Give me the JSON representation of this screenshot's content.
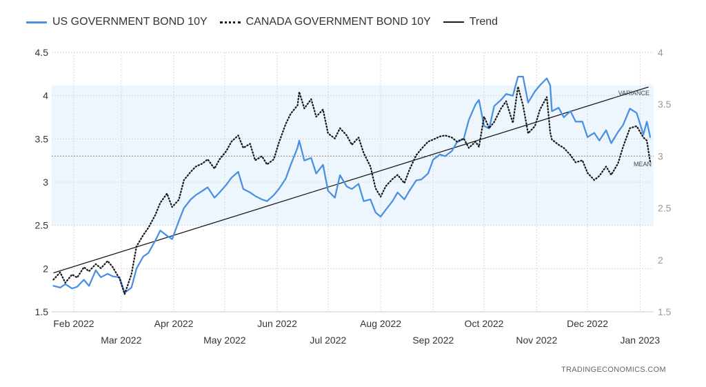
{
  "legend": {
    "items": [
      {
        "label": "US GOVERNMENT BOND 10Y",
        "color": "#4a90e2",
        "style": "solid"
      },
      {
        "label": "CANADA GOVERNMENT BOND 10Y",
        "color": "#1a1a1a",
        "style": "dotted"
      },
      {
        "label": "Trend",
        "color": "#1a1a1a",
        "style": "solid"
      }
    ]
  },
  "attribution": "TRADINGECONOMICS.COM",
  "colors": {
    "us": "#4a90e2",
    "canada": "#1a1a1a",
    "trend": "#1a1a1a",
    "band": "#eef6fd",
    "grid": "#d9d9d9"
  },
  "chart_data": {
    "type": "line",
    "x_range": [
      "2022-01-19",
      "2023-01-09"
    ],
    "x_tick_labels": [
      {
        "date": "2022-02-01",
        "label": "Feb 2022",
        "row": 1
      },
      {
        "date": "2022-03-01",
        "label": "Mar 2022",
        "row": 2
      },
      {
        "date": "2022-04-01",
        "label": "Apr 2022",
        "row": 1
      },
      {
        "date": "2022-05-01",
        "label": "May 2022",
        "row": 2
      },
      {
        "date": "2022-06-01",
        "label": "Jun 2022",
        "row": 1
      },
      {
        "date": "2022-07-01",
        "label": "Jul 2022",
        "row": 2
      },
      {
        "date": "2022-08-01",
        "label": "Aug 2022",
        "row": 1
      },
      {
        "date": "2022-09-01",
        "label": "Sep 2022",
        "row": 2
      },
      {
        "date": "2022-10-01",
        "label": "Oct 2022",
        "row": 1
      },
      {
        "date": "2022-11-01",
        "label": "Nov 2022",
        "row": 2
      },
      {
        "date": "2022-12-01",
        "label": "Dec 2022",
        "row": 1
      },
      {
        "date": "2023-01-01",
        "label": "Jan 2023",
        "row": 2
      }
    ],
    "left_axis": {
      "range": [
        1.5,
        4.5
      ],
      "ticks": [
        1.5,
        2,
        2.5,
        3,
        3.5,
        4,
        4.5
      ],
      "tick_labels": [
        "1.5",
        "2",
        "2.5",
        "3",
        "3.5",
        "4",
        "4.5"
      ]
    },
    "right_axis": {
      "range": [
        1.5,
        4
      ],
      "ticks": [
        1.5,
        2,
        2.5,
        3,
        3.5,
        4
      ],
      "tick_labels": [
        "1.5",
        "2",
        "2.5",
        "3",
        "3.5",
        "4"
      ]
    },
    "grid": true,
    "legend_position": "top-left",
    "annotations": {
      "variance": "VARIANCE",
      "mean": "MEAN",
      "variance_band_left": [
        2.5,
        4.12
      ],
      "mean_left": 3.3
    },
    "trend": {
      "points": [
        [
          "2022-01-20",
          1.95
        ],
        [
          "2023-01-06",
          4.1
        ]
      ]
    },
    "series": [
      {
        "name": "US GOVERNMENT BOND 10Y",
        "axis": "left",
        "points": [
          [
            "2022-01-20",
            1.8
          ],
          [
            "2022-01-24",
            1.78
          ],
          [
            "2022-01-27",
            1.82
          ],
          [
            "2022-01-31",
            1.77
          ],
          [
            "2022-02-03",
            1.79
          ],
          [
            "2022-02-07",
            1.87
          ],
          [
            "2022-02-10",
            1.8
          ],
          [
            "2022-02-14",
            1.98
          ],
          [
            "2022-02-17",
            1.9
          ],
          [
            "2022-02-21",
            1.94
          ],
          [
            "2022-02-24",
            1.91
          ],
          [
            "2022-02-28",
            1.9
          ],
          [
            "2022-03-03",
            1.72
          ],
          [
            "2022-03-07",
            1.78
          ],
          [
            "2022-03-10",
            2.0
          ],
          [
            "2022-03-14",
            2.14
          ],
          [
            "2022-03-17",
            2.18
          ],
          [
            "2022-03-21",
            2.32
          ],
          [
            "2022-03-24",
            2.44
          ],
          [
            "2022-03-28",
            2.38
          ],
          [
            "2022-03-31",
            2.34
          ],
          [
            "2022-04-04",
            2.55
          ],
          [
            "2022-04-07",
            2.7
          ],
          [
            "2022-04-11",
            2.8
          ],
          [
            "2022-04-14",
            2.85
          ],
          [
            "2022-04-18",
            2.9
          ],
          [
            "2022-04-21",
            2.94
          ],
          [
            "2022-04-25",
            2.82
          ],
          [
            "2022-04-28",
            2.88
          ],
          [
            "2022-05-02",
            2.97
          ],
          [
            "2022-05-05",
            3.05
          ],
          [
            "2022-05-09",
            3.12
          ],
          [
            "2022-05-12",
            2.92
          ],
          [
            "2022-05-16",
            2.88
          ],
          [
            "2022-05-19",
            2.84
          ],
          [
            "2022-05-23",
            2.8
          ],
          [
            "2022-05-26",
            2.78
          ],
          [
            "2022-05-30",
            2.85
          ],
          [
            "2022-06-02",
            2.92
          ],
          [
            "2022-06-06",
            3.04
          ],
          [
            "2022-06-09",
            3.2
          ],
          [
            "2022-06-13",
            3.4
          ],
          [
            "2022-06-14",
            3.48
          ],
          [
            "2022-06-17",
            3.25
          ],
          [
            "2022-06-21",
            3.28
          ],
          [
            "2022-06-24",
            3.1
          ],
          [
            "2022-06-28",
            3.2
          ],
          [
            "2022-07-01",
            2.9
          ],
          [
            "2022-07-05",
            2.82
          ],
          [
            "2022-07-08",
            3.08
          ],
          [
            "2022-07-12",
            2.95
          ],
          [
            "2022-07-15",
            2.92
          ],
          [
            "2022-07-19",
            2.98
          ],
          [
            "2022-07-22",
            2.78
          ],
          [
            "2022-07-26",
            2.8
          ],
          [
            "2022-07-29",
            2.65
          ],
          [
            "2022-08-01",
            2.6
          ],
          [
            "2022-08-04",
            2.68
          ],
          [
            "2022-08-08",
            2.78
          ],
          [
            "2022-08-11",
            2.88
          ],
          [
            "2022-08-15",
            2.8
          ],
          [
            "2022-08-18",
            2.9
          ],
          [
            "2022-08-22",
            3.02
          ],
          [
            "2022-08-25",
            3.03
          ],
          [
            "2022-08-29",
            3.1
          ],
          [
            "2022-09-01",
            3.26
          ],
          [
            "2022-09-05",
            3.32
          ],
          [
            "2022-09-08",
            3.3
          ],
          [
            "2022-09-12",
            3.36
          ],
          [
            "2022-09-15",
            3.46
          ],
          [
            "2022-09-19",
            3.5
          ],
          [
            "2022-09-22",
            3.72
          ],
          [
            "2022-09-26",
            3.9
          ],
          [
            "2022-09-28",
            3.95
          ],
          [
            "2022-10-01",
            3.65
          ],
          [
            "2022-10-04",
            3.62
          ],
          [
            "2022-10-07",
            3.88
          ],
          [
            "2022-10-11",
            3.95
          ],
          [
            "2022-10-14",
            4.02
          ],
          [
            "2022-10-18",
            4.0
          ],
          [
            "2022-10-21",
            4.22
          ],
          [
            "2022-10-24",
            4.22
          ],
          [
            "2022-10-27",
            3.92
          ],
          [
            "2022-10-31",
            4.05
          ],
          [
            "2022-11-03",
            4.12
          ],
          [
            "2022-11-07",
            4.2
          ],
          [
            "2022-11-09",
            4.12
          ],
          [
            "2022-11-10",
            3.82
          ],
          [
            "2022-11-14",
            3.86
          ],
          [
            "2022-11-17",
            3.75
          ],
          [
            "2022-11-21",
            3.82
          ],
          [
            "2022-11-24",
            3.7
          ],
          [
            "2022-11-28",
            3.7
          ],
          [
            "2022-12-01",
            3.52
          ],
          [
            "2022-12-05",
            3.57
          ],
          [
            "2022-12-08",
            3.48
          ],
          [
            "2022-12-12",
            3.6
          ],
          [
            "2022-12-15",
            3.45
          ],
          [
            "2022-12-19",
            3.58
          ],
          [
            "2022-12-22",
            3.66
          ],
          [
            "2022-12-26",
            3.85
          ],
          [
            "2022-12-30",
            3.8
          ],
          [
            "2023-01-03",
            3.55
          ],
          [
            "2023-01-05",
            3.7
          ],
          [
            "2023-01-07",
            3.52
          ]
        ]
      },
      {
        "name": "CANADA GOVERNMENT BOND 10Y",
        "axis": "right",
        "points": [
          [
            "2022-01-20",
            1.81
          ],
          [
            "2022-01-24",
            1.88
          ],
          [
            "2022-01-27",
            1.78
          ],
          [
            "2022-01-31",
            1.86
          ],
          [
            "2022-02-03",
            1.83
          ],
          [
            "2022-02-07",
            1.93
          ],
          [
            "2022-02-10",
            1.89
          ],
          [
            "2022-02-14",
            1.96
          ],
          [
            "2022-02-17",
            1.92
          ],
          [
            "2022-02-21",
            1.99
          ],
          [
            "2022-02-24",
            1.93
          ],
          [
            "2022-02-28",
            1.82
          ],
          [
            "2022-03-03",
            1.67
          ],
          [
            "2022-03-07",
            1.86
          ],
          [
            "2022-03-10",
            2.13
          ],
          [
            "2022-03-14",
            2.24
          ],
          [
            "2022-03-17",
            2.31
          ],
          [
            "2022-03-21",
            2.43
          ],
          [
            "2022-03-24",
            2.55
          ],
          [
            "2022-03-28",
            2.64
          ],
          [
            "2022-03-31",
            2.51
          ],
          [
            "2022-04-04",
            2.58
          ],
          [
            "2022-04-07",
            2.77
          ],
          [
            "2022-04-11",
            2.85
          ],
          [
            "2022-04-14",
            2.9
          ],
          [
            "2022-04-18",
            2.93
          ],
          [
            "2022-04-21",
            2.97
          ],
          [
            "2022-04-25",
            2.88
          ],
          [
            "2022-04-28",
            2.97
          ],
          [
            "2022-05-02",
            3.05
          ],
          [
            "2022-05-05",
            3.14
          ],
          [
            "2022-05-09",
            3.2
          ],
          [
            "2022-05-12",
            3.08
          ],
          [
            "2022-05-16",
            3.12
          ],
          [
            "2022-05-19",
            2.96
          ],
          [
            "2022-05-23",
            3.0
          ],
          [
            "2022-05-26",
            2.92
          ],
          [
            "2022-05-30",
            2.97
          ],
          [
            "2022-06-02",
            3.13
          ],
          [
            "2022-06-06",
            3.31
          ],
          [
            "2022-06-09",
            3.41
          ],
          [
            "2022-06-13",
            3.49
          ],
          [
            "2022-06-14",
            3.62
          ],
          [
            "2022-06-17",
            3.46
          ],
          [
            "2022-06-21",
            3.55
          ],
          [
            "2022-06-24",
            3.38
          ],
          [
            "2022-06-28",
            3.45
          ],
          [
            "2022-07-01",
            3.22
          ],
          [
            "2022-07-05",
            3.17
          ],
          [
            "2022-07-08",
            3.27
          ],
          [
            "2022-07-12",
            3.2
          ],
          [
            "2022-07-15",
            3.11
          ],
          [
            "2022-07-19",
            3.18
          ],
          [
            "2022-07-22",
            3.03
          ],
          [
            "2022-07-26",
            2.9
          ],
          [
            "2022-07-29",
            2.69
          ],
          [
            "2022-08-01",
            2.61
          ],
          [
            "2022-08-04",
            2.71
          ],
          [
            "2022-08-08",
            2.78
          ],
          [
            "2022-08-11",
            2.82
          ],
          [
            "2022-08-15",
            2.74
          ],
          [
            "2022-08-18",
            2.87
          ],
          [
            "2022-08-22",
            3.01
          ],
          [
            "2022-08-25",
            3.07
          ],
          [
            "2022-08-29",
            3.14
          ],
          [
            "2022-09-01",
            3.16
          ],
          [
            "2022-09-05",
            3.19
          ],
          [
            "2022-09-08",
            3.2
          ],
          [
            "2022-09-12",
            3.18
          ],
          [
            "2022-09-15",
            3.14
          ],
          [
            "2022-09-19",
            3.17
          ],
          [
            "2022-09-22",
            3.08
          ],
          [
            "2022-09-26",
            3.14
          ],
          [
            "2022-09-28",
            3.09
          ],
          [
            "2022-10-01",
            3.38
          ],
          [
            "2022-10-04",
            3.27
          ],
          [
            "2022-10-07",
            3.33
          ],
          [
            "2022-10-11",
            3.46
          ],
          [
            "2022-10-14",
            3.53
          ],
          [
            "2022-10-18",
            3.32
          ],
          [
            "2022-10-21",
            3.67
          ],
          [
            "2022-10-24",
            3.49
          ],
          [
            "2022-10-27",
            3.22
          ],
          [
            "2022-10-31",
            3.29
          ],
          [
            "2022-11-03",
            3.45
          ],
          [
            "2022-11-07",
            3.57
          ],
          [
            "2022-11-09",
            3.23
          ],
          [
            "2022-11-10",
            3.16
          ],
          [
            "2022-11-14",
            3.11
          ],
          [
            "2022-11-17",
            3.08
          ],
          [
            "2022-11-21",
            3.01
          ],
          [
            "2022-11-24",
            2.94
          ],
          [
            "2022-11-28",
            2.96
          ],
          [
            "2022-12-01",
            2.84
          ],
          [
            "2022-12-05",
            2.77
          ],
          [
            "2022-12-08",
            2.81
          ],
          [
            "2022-12-12",
            2.9
          ],
          [
            "2022-12-15",
            2.82
          ],
          [
            "2022-12-19",
            2.93
          ],
          [
            "2022-12-22",
            3.09
          ],
          [
            "2022-12-26",
            3.27
          ],
          [
            "2022-12-30",
            3.29
          ],
          [
            "2023-01-03",
            3.18
          ],
          [
            "2023-01-05",
            3.15
          ],
          [
            "2023-01-07",
            2.94
          ]
        ]
      }
    ]
  }
}
